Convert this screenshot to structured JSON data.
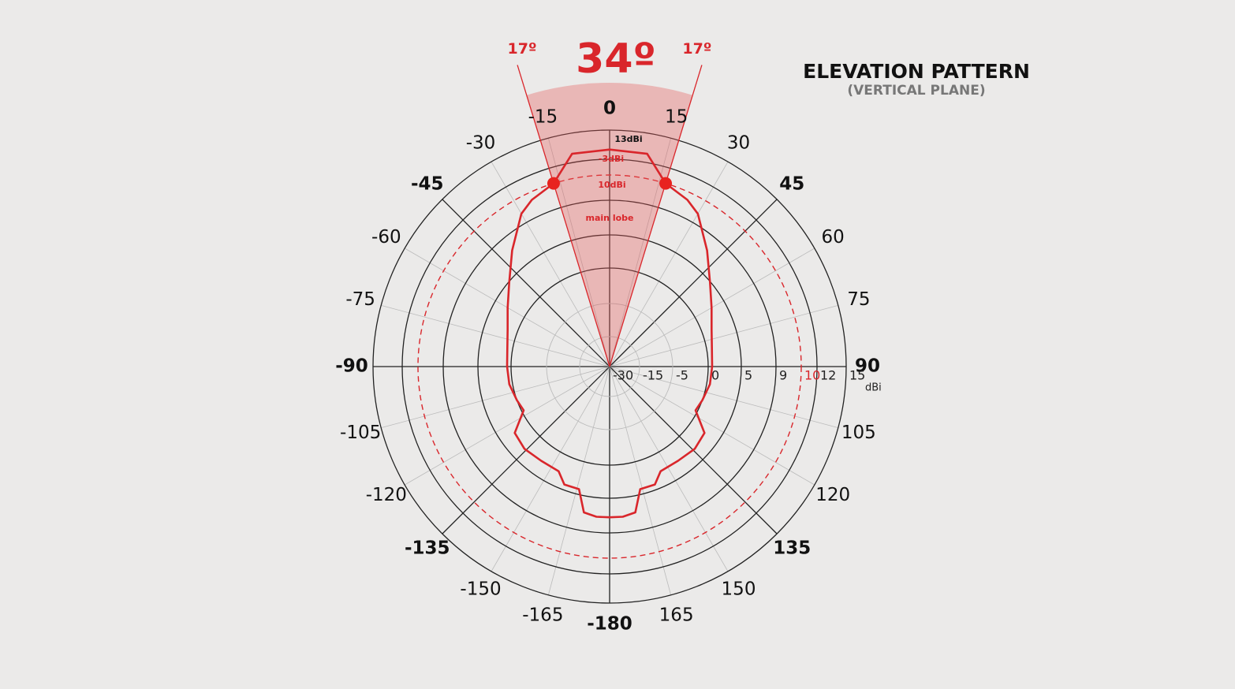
{
  "chart_data": {
    "type": "polar",
    "title": "ELEVATION PATTERN",
    "subtitle": "(VERTICAL PLANE)",
    "r_label": "dBi",
    "color": "#d9262b",
    "x": [
      -180,
      -175,
      -170,
      -166,
      -159,
      -154,
      -144,
      -134,
      -125,
      -117,
      -110,
      -100,
      -90,
      -80,
      -70,
      -60,
      -50,
      -40,
      -30,
      -25,
      -17,
      -10,
      0,
      10,
      17,
      25,
      30,
      40,
      50,
      60,
      70,
      80,
      90,
      100,
      110,
      117,
      125,
      134,
      144,
      154,
      159,
      166,
      170,
      175,
      180
    ],
    "values": [
      7.2,
      7.2,
      6.9,
      4.2,
      4.2,
      2.7,
      2.7,
      3,
      2.6,
      -0.3,
      0,
      0.5,
      0.6,
      0.8,
      1.5,
      2.9,
      4.9,
      7.3,
      9.4,
      9.7,
      10,
      12.9,
      13,
      12.9,
      10,
      9.7,
      9.4,
      7.3,
      4.9,
      2.9,
      1.5,
      0.8,
      0.6,
      0.5,
      0,
      -0.3,
      2.6,
      3,
      2.7,
      2.7,
      4.2,
      4.2,
      6.9,
      7.2,
      7.2
    ],
    "rlim": [
      -30,
      15
    ],
    "rticks": [
      -30,
      -15,
      -5,
      0,
      5,
      9,
      10,
      12,
      15
    ],
    "highlight_rtick": {
      "value": 10,
      "color": "#d9262b"
    },
    "thetalim": [
      -180,
      180
    ],
    "theta_ticks": [
      0,
      15,
      30,
      45,
      60,
      75,
      90,
      105,
      120,
      135,
      150,
      165,
      -180,
      -165,
      -150,
      -135,
      -120,
      -105,
      -90,
      -75,
      -60,
      -45,
      -30,
      -15
    ],
    "beam": {
      "half_width": 17,
      "label": "34º",
      "edge_label": "17º"
    },
    "markers": {
      "x": [
        -17,
        17
      ],
      "values": [
        10,
        10
      ]
    },
    "annotations": [
      "13dBi",
      "-3dBi",
      "10dBi",
      "main lobe"
    ]
  }
}
